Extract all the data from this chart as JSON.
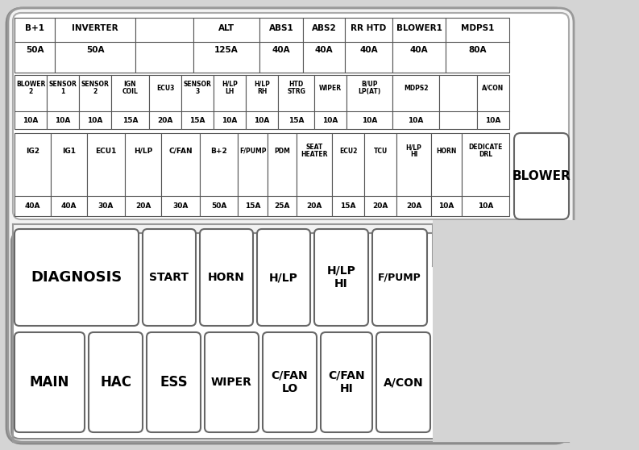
{
  "bg_color": "#d4d4d4",
  "box_bg": "#ffffff",
  "box_border": "#333333",
  "title_color": "#000000",
  "row1_fuses": [
    {
      "label": "B+1",
      "amp": "50A",
      "span": 1
    },
    {
      "label": "INVERTER",
      "amp": "50A",
      "span": 1
    },
    {
      "label": "",
      "amp": "",
      "span": 1
    },
    {
      "label": "ALT",
      "amp": "125A",
      "span": 1
    },
    {
      "label": "ABS1",
      "amp": "40A",
      "span": 1
    },
    {
      "label": "ABS2",
      "amp": "40A",
      "span": 1
    },
    {
      "label": "RR HTD",
      "amp": "40A",
      "span": 1
    },
    {
      "label": "BLOWER1",
      "amp": "40A",
      "span": 1
    },
    {
      "label": "MDPS1",
      "amp": "80A",
      "span": 1
    }
  ],
  "row2_fuses": [
    {
      "label": "BLOWER\n2",
      "amp": "10A",
      "small": true
    },
    {
      "label": "SENSOR\n1",
      "amp": "10A",
      "small": true
    },
    {
      "label": "SENSOR\n2",
      "amp": "10A",
      "small": true
    },
    {
      "label": "IGN\nCOIL",
      "amp": "15A",
      "small": true
    },
    {
      "label": "ECU3",
      "amp": "20A",
      "small": true
    },
    {
      "label": "SENSOR\n3",
      "amp": "15A",
      "small": true
    },
    {
      "label": "H/LP\nLH",
      "amp": "10A",
      "small": true
    },
    {
      "label": "H/LP\nRH",
      "amp": "10A",
      "small": true
    },
    {
      "label": "HTD\nSTRG",
      "amp": "15A",
      "small": true
    },
    {
      "label": "WIPER",
      "amp": "10A",
      "small": true
    },
    {
      "label": "B/UP\nLP(AT)",
      "amp": "10A",
      "small": true
    },
    {
      "label": "MDPS2",
      "amp": "10A",
      "small": true
    },
    {
      "label": "",
      "amp": "",
      "small": true
    },
    {
      "label": "A/CON",
      "amp": "10A",
      "small": true
    }
  ],
  "row3_fuses": [
    {
      "label": "IG2",
      "amp": "40A",
      "small": true
    },
    {
      "label": "IG1",
      "amp": "40A",
      "small": true
    },
    {
      "label": "ECU1",
      "amp": "30A",
      "small": true
    },
    {
      "label": "H/LP",
      "amp": "20A",
      "small": true
    },
    {
      "label": "C/FAN",
      "amp": "30A",
      "small": true
    },
    {
      "label": "B+2",
      "amp": "50A",
      "small": true
    },
    {
      "label": "F/PUMP",
      "amp": "15A",
      "small": true
    },
    {
      "label": "PDM",
      "amp": "25A",
      "small": true
    },
    {
      "label": "SEAT\nHEATER",
      "amp": "20A",
      "small": true
    },
    {
      "label": "ECU2",
      "amp": "15A",
      "small": true
    },
    {
      "label": "TCU",
      "amp": "20A",
      "small": true
    },
    {
      "label": "H/LP\nHI",
      "amp": "20A",
      "small": true
    },
    {
      "label": "HORN",
      "amp": "10A",
      "small": true
    },
    {
      "label": "DEDICATE\nDRL",
      "amp": "10A",
      "small": true
    }
  ],
  "big_fuses_row1": [
    {
      "label": "DIAGNOSIS",
      "wide": true
    },
    {
      "label": "START",
      "wide": false
    },
    {
      "label": "HORN",
      "wide": false
    },
    {
      "label": "H/LP",
      "wide": false
    },
    {
      "label": "H/LP\nHI",
      "wide": false
    },
    {
      "label": "F/PUMP",
      "wide": false
    }
  ],
  "big_fuses_row2": [
    {
      "label": "MAIN",
      "wide": false
    },
    {
      "label": "HAC",
      "wide": false
    },
    {
      "label": "ESS",
      "wide": false
    },
    {
      "label": "WIPER",
      "wide": false
    },
    {
      "label": "C/FAN\nLO",
      "wide": false
    },
    {
      "label": "C/FAN\nHI",
      "wide": false
    },
    {
      "label": "A/CON",
      "wide": false
    }
  ],
  "blower_label": "BLOWER"
}
